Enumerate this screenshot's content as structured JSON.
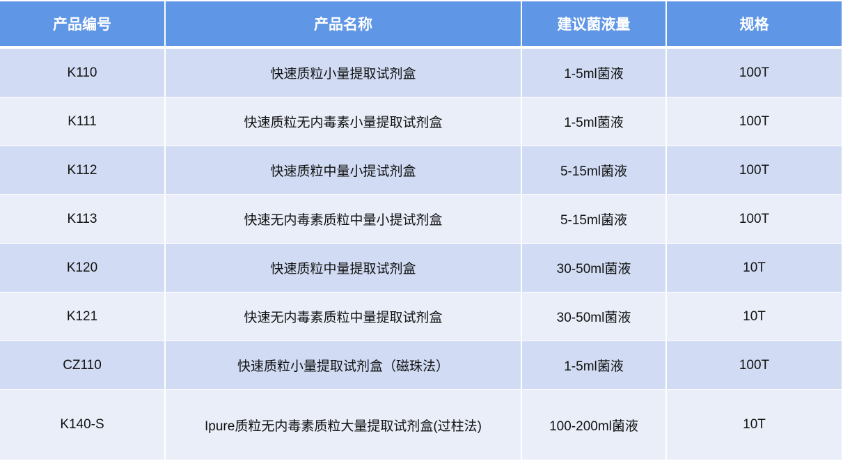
{
  "table": {
    "headers": [
      "产品编号",
      "产品名称",
      "建议菌液量",
      "规格"
    ],
    "rows": [
      [
        "K110",
        "快速质粒小量提取试剂盒",
        "1-5ml菌液",
        "100T"
      ],
      [
        "K111",
        "快速质粒无内毒素小量提取试剂盒",
        "1-5ml菌液",
        "100T"
      ],
      [
        "K112",
        "快速质粒中量小提试剂盒",
        "5-15ml菌液",
        "100T"
      ],
      [
        "K113",
        "快速无内毒素质粒中量小提试剂盒",
        "5-15ml菌液",
        "100T"
      ],
      [
        "K120",
        "快速质粒中量提取试剂盒",
        "30-50ml菌液",
        "10T"
      ],
      [
        "K121",
        "快速无内毒素质粒中量提取试剂盒",
        "30-50ml菌液",
        "10T"
      ],
      [
        "CZ110",
        "快速质粒小量提取试剂盒（磁珠法）",
        "1-5ml菌液",
        "100T"
      ],
      [
        "K140-S",
        "Ipure质粒无内毒素质粒大量提取试剂盒(过柱法)",
        "100-200ml菌液",
        "10T"
      ]
    ]
  },
  "colors": {
    "header": "#5f96e6",
    "row_odd": "#d1dcf4",
    "row_even": "#e9eef9"
  }
}
